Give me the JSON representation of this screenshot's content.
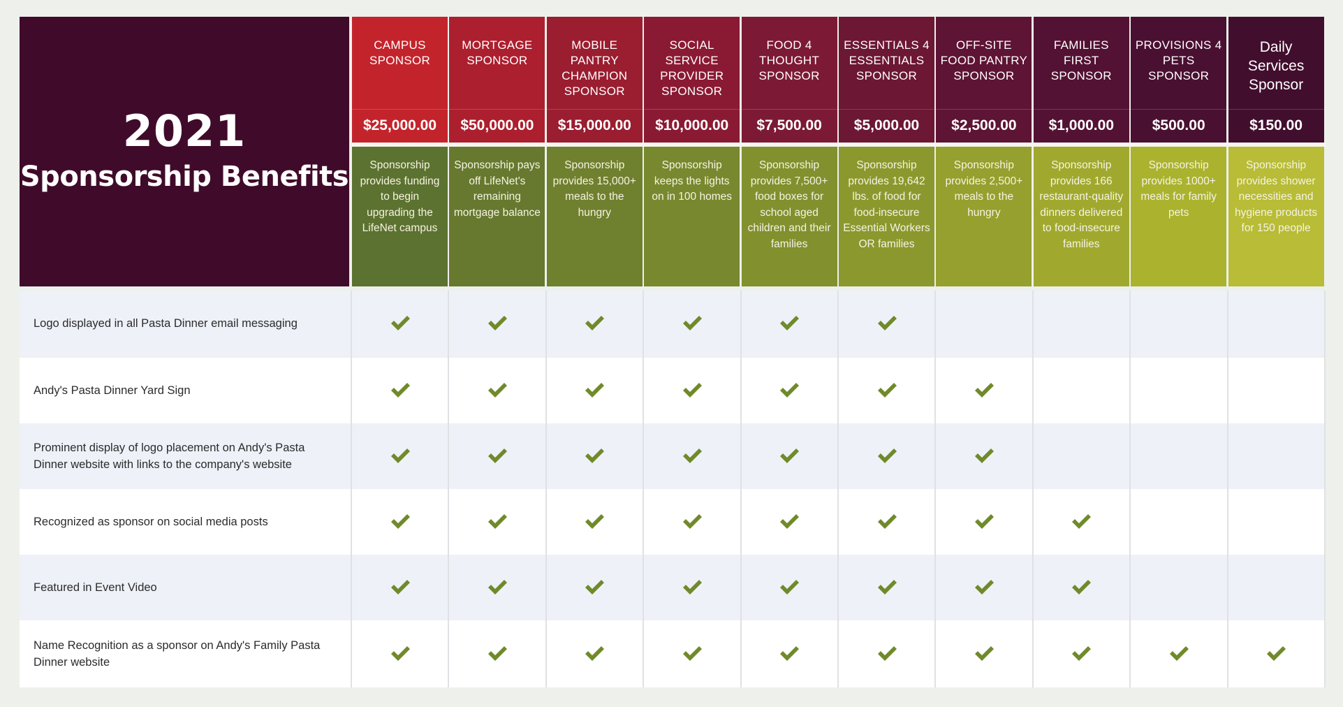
{
  "title": {
    "year": "2021",
    "subtitle": "Sponsorship Benefits"
  },
  "colors": {
    "title_bg": "#400b2a",
    "header_bg": [
      "#c3242c",
      "#ac1f2e",
      "#9a1d30",
      "#8a1a33",
      "#7c1a35",
      "#6c1734",
      "#5e1434",
      "#531233",
      "#4a1031",
      "#420e2e"
    ],
    "desc_bg": [
      "#5c7230",
      "#66792f",
      "#6f802f",
      "#78882f",
      "#82902e",
      "#8b982e",
      "#95a02e",
      "#a0a92e",
      "#abb22e",
      "#b8bc36"
    ],
    "row_alt": "#eef1f8",
    "row_plain": "#ffffff",
    "check": "#708a2a"
  },
  "columns": [
    {
      "name": "CAMPUS SPONSOR",
      "price": "$25,000.00",
      "desc": "Sponsorship provides funding to begin upgrading the LifeNet campus"
    },
    {
      "name": "MORTGAGE SPONSOR",
      "price": "$50,000.00",
      "desc": "Sponsorship pays off LifeNet's remaining mortgage balance"
    },
    {
      "name": "MOBILE PANTRY CHAMPION SPONSOR",
      "price": "$15,000.00",
      "desc": "Sponsorship provides 15,000+ meals to the hungry"
    },
    {
      "name": "SOCIAL SERVICE PROVIDER SPONSOR",
      "price": "$10,000.00",
      "desc": "Sponsorship keeps the lights on in 100 homes"
    },
    {
      "name": "FOOD 4 THOUGHT SPONSOR",
      "price": "$7,500.00",
      "desc": "Sponsorship provides 7,500+ food boxes for school aged children and their families"
    },
    {
      "name": "ESSENTIALS 4 ESSENTIALS SPONSOR",
      "price": "$5,000.00",
      "desc": "Sponsorship provides 19,642 lbs. of food for food-insecure Essential Workers OR families"
    },
    {
      "name": "OFF-SITE FOOD PANTRY SPONSOR",
      "price": "$2,500.00",
      "desc": "Sponsorship provides 2,500+ meals to the hungry"
    },
    {
      "name": "FAMILIES FIRST SPONSOR",
      "price": "$1,000.00",
      "desc": "Sponsorship provides 166 restaurant-quality dinners delivered to food-insecure families"
    },
    {
      "name": "PROVISIONS 4 PETS SPONSOR",
      "price": "$500.00",
      "desc": "Sponsorship provides 1000+ meals for family pets"
    },
    {
      "name": "Daily Services Sponsor",
      "price": "$150.00",
      "desc": "Sponsorship provides shower necessities and hygiene products for 150 people"
    }
  ],
  "rows": [
    {
      "label": "Logo displayed in all Pasta Dinner email messaging",
      "checks": [
        true,
        true,
        true,
        true,
        true,
        true,
        false,
        false,
        false,
        false
      ]
    },
    {
      "label": "Andy's Pasta Dinner Yard Sign",
      "checks": [
        true,
        true,
        true,
        true,
        true,
        true,
        true,
        false,
        false,
        false
      ]
    },
    {
      "label": "Prominent display of logo placement on Andy's Pasta Dinner website with links to the company's website",
      "checks": [
        true,
        true,
        true,
        true,
        true,
        true,
        true,
        false,
        false,
        false
      ]
    },
    {
      "label": "Recognized as sponsor on social media posts",
      "checks": [
        true,
        true,
        true,
        true,
        true,
        true,
        true,
        true,
        false,
        false
      ]
    },
    {
      "label": "Featured in Event Video",
      "checks": [
        true,
        true,
        true,
        true,
        true,
        true,
        true,
        true,
        false,
        false
      ]
    },
    {
      "label": "Name Recognition as a sponsor on Andy's Family Pasta Dinner website",
      "checks": [
        true,
        true,
        true,
        true,
        true,
        true,
        true,
        true,
        true,
        true
      ]
    }
  ]
}
